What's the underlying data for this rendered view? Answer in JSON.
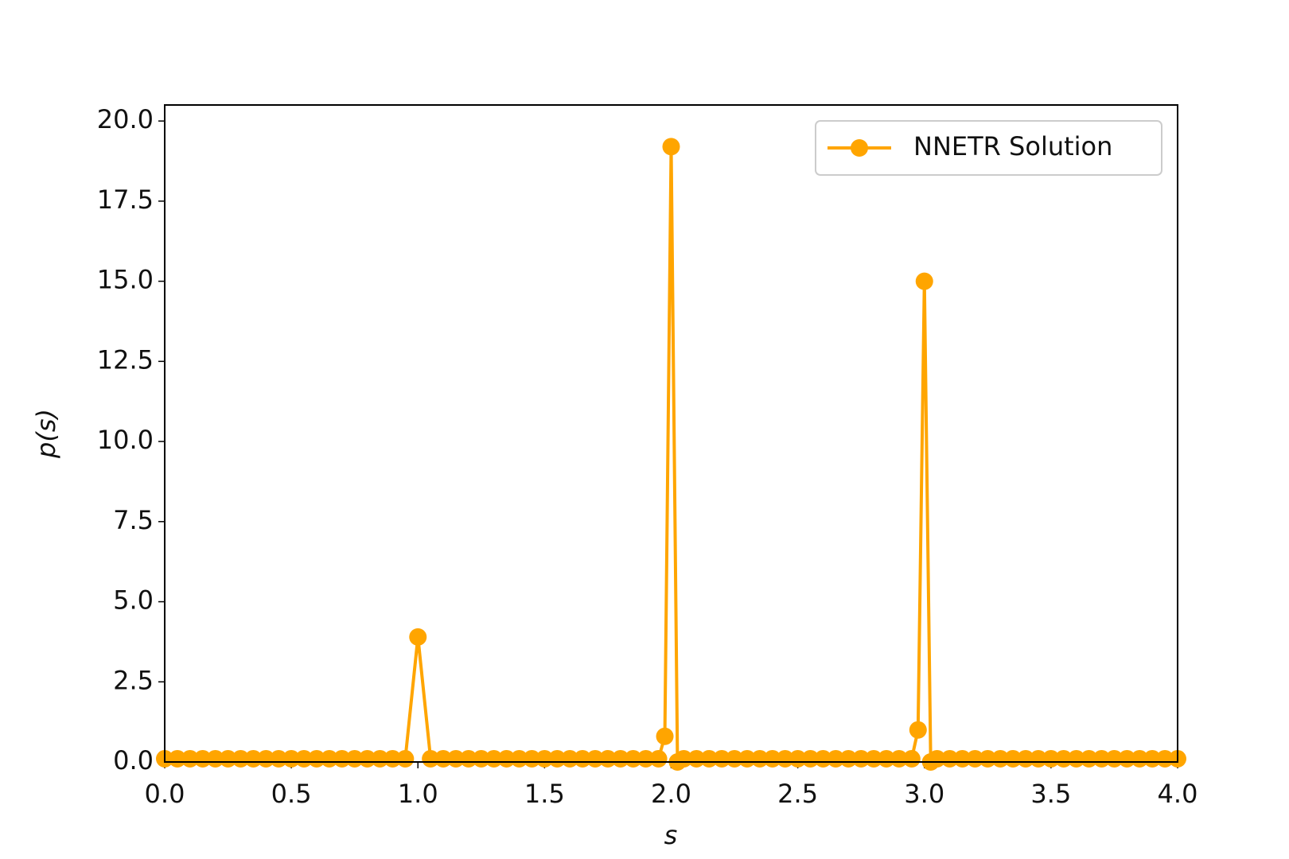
{
  "chart_data": {
    "type": "line",
    "x_label": "s",
    "y_label": "p(s)",
    "x": [
      0,
      0.05,
      0.1,
      0.15,
      0.2,
      0.25,
      0.3,
      0.35,
      0.4,
      0.45,
      0.5,
      0.55,
      0.6,
      0.65,
      0.7,
      0.75,
      0.8,
      0.85,
      0.9,
      0.95,
      1.0,
      1.05,
      1.1,
      1.15,
      1.2,
      1.25,
      1.3,
      1.35,
      1.4,
      1.45,
      1.5,
      1.55,
      1.6,
      1.65,
      1.7,
      1.75,
      1.8,
      1.85,
      1.9,
      1.95,
      1.975,
      2.0,
      2.025,
      2.05,
      2.1,
      2.15,
      2.2,
      2.25,
      2.3,
      2.35,
      2.4,
      2.45,
      2.5,
      2.55,
      2.6,
      2.65,
      2.7,
      2.75,
      2.8,
      2.85,
      2.9,
      2.95,
      2.975,
      3.0,
      3.025,
      3.05,
      3.1,
      3.15,
      3.2,
      3.25,
      3.3,
      3.35,
      3.4,
      3.45,
      3.5,
      3.55,
      3.6,
      3.65,
      3.7,
      3.75,
      3.8,
      3.85,
      3.9,
      3.95,
      4.0
    ],
    "series": [
      {
        "name": "NNETR Solution",
        "color": "#ffa500",
        "values": [
          0.1,
          0.1,
          0.1,
          0.1,
          0.1,
          0.1,
          0.1,
          0.1,
          0.1,
          0.1,
          0.1,
          0.1,
          0.1,
          0.1,
          0.1,
          0.1,
          0.1,
          0.1,
          0.1,
          0.1,
          3.9,
          0.1,
          0.1,
          0.1,
          0.1,
          0.1,
          0.1,
          0.1,
          0.1,
          0.1,
          0.1,
          0.1,
          0.1,
          0.1,
          0.1,
          0.1,
          0.1,
          0.1,
          0.1,
          0.1,
          0.8,
          19.2,
          0,
          0.1,
          0.1,
          0.1,
          0.1,
          0.1,
          0.1,
          0.1,
          0.1,
          0.1,
          0.1,
          0.1,
          0.1,
          0.1,
          0.1,
          0.1,
          0.1,
          0.1,
          0.1,
          0.1,
          1.0,
          15.0,
          0,
          0.1,
          0.1,
          0.1,
          0.1,
          0.1,
          0.1,
          0.1,
          0.1,
          0.1,
          0.1,
          0.1,
          0.1,
          0.1,
          0.1,
          0.1,
          0.1,
          0.1,
          0.1,
          0.1,
          0.1
        ]
      }
    ],
    "xlim": [
      0,
      4
    ],
    "ylim": [
      0,
      20.5
    ],
    "xticks": [
      {
        "value": 0,
        "label": "0.0"
      },
      {
        "value": 0.5,
        "label": "0.5"
      },
      {
        "value": 1,
        "label": "1.0"
      },
      {
        "value": 1.5,
        "label": "1.5"
      },
      {
        "value": 2,
        "label": "2.0"
      },
      {
        "value": 2.5,
        "label": "2.5"
      },
      {
        "value": 3,
        "label": "3.0"
      },
      {
        "value": 3.5,
        "label": "3.5"
      },
      {
        "value": 4,
        "label": "4.0"
      }
    ],
    "yticks": [
      {
        "value": 0,
        "label": "0.0"
      },
      {
        "value": 2.5,
        "label": "2.5"
      },
      {
        "value": 5,
        "label": "5.0"
      },
      {
        "value": 7.5,
        "label": "7.5"
      },
      {
        "value": 10,
        "label": "10.0"
      },
      {
        "value": 12.5,
        "label": "12.5"
      },
      {
        "value": 15,
        "label": "15.0"
      },
      {
        "value": 17.5,
        "label": "17.5"
      },
      {
        "value": 20,
        "label": "20.0"
      }
    ],
    "legend": "upper right",
    "grid": false
  }
}
